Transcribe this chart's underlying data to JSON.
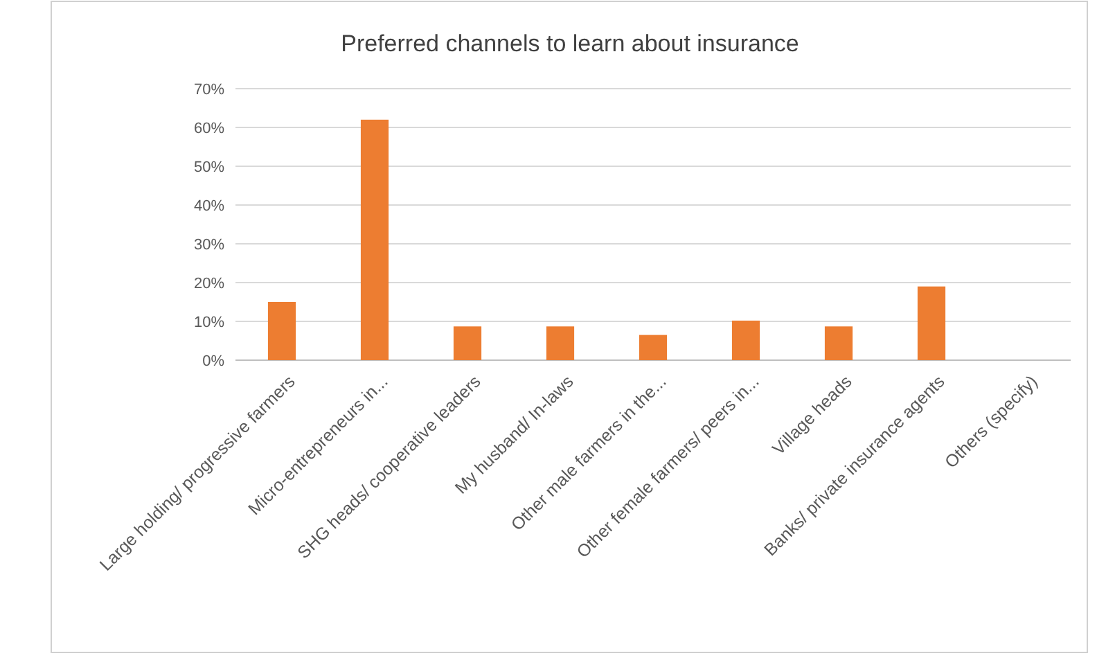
{
  "chart_data": {
    "type": "bar",
    "title": "Preferred channels to learn about insurance",
    "categories": [
      "Large holding/ progressive farmers",
      "Micro-entrepreneurs in...",
      "SHG heads/ cooperative leaders",
      "My husband/ In-laws",
      "Other male farmers in the...",
      "Other female farmers/ peers in...",
      "Village heads",
      "Banks/ private insurance agents",
      "Others (specify)"
    ],
    "values": [
      15,
      62,
      8.7,
      8.7,
      6.5,
      10.2,
      8.7,
      19,
      0
    ],
    "color": "#ed7d31",
    "ylim": [
      0,
      70
    ],
    "yticks": [
      {
        "value": 0,
        "label": "0%"
      },
      {
        "value": 10,
        "label": "10%"
      },
      {
        "value": 20,
        "label": "20%"
      },
      {
        "value": 30,
        "label": "30%"
      },
      {
        "value": 40,
        "label": "40%"
      },
      {
        "value": 50,
        "label": "50%"
      },
      {
        "value": 60,
        "label": "60%"
      },
      {
        "value": 70,
        "label": "70%"
      }
    ],
    "grid": "y"
  }
}
